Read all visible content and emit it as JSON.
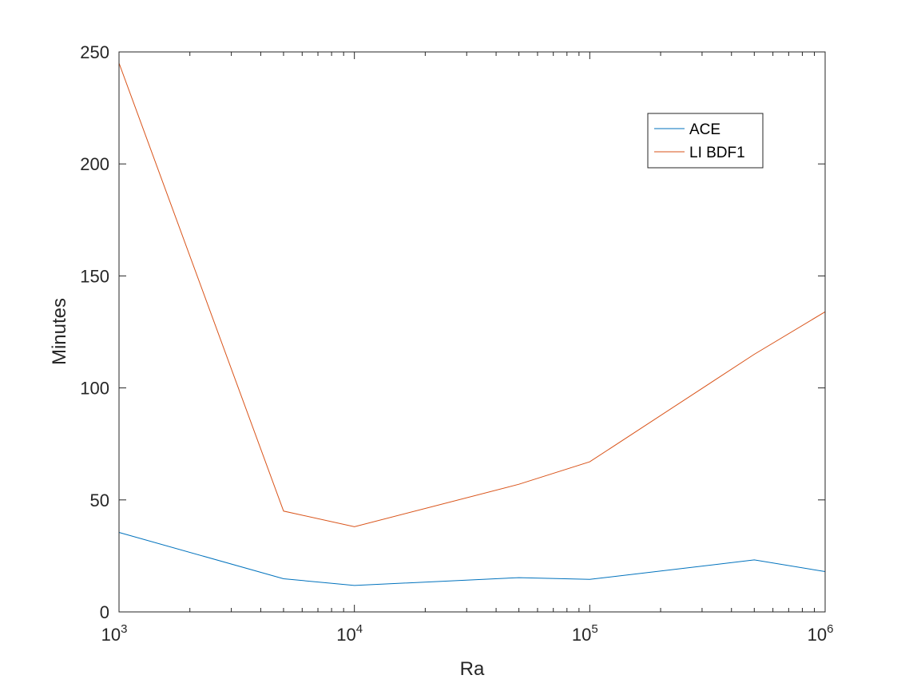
{
  "chart_data": {
    "type": "line",
    "xscale": "log",
    "xlim": [
      1000,
      1000000
    ],
    "ylim": [
      0,
      250
    ],
    "xlabel": "Ra",
    "ylabel": "Minutes",
    "x_ticks": [
      {
        "base": "10",
        "exp": "3",
        "value": 1000
      },
      {
        "base": "10",
        "exp": "4",
        "value": 10000
      },
      {
        "base": "10",
        "exp": "5",
        "value": 100000
      },
      {
        "base": "10",
        "exp": "6",
        "value": 1000000
      }
    ],
    "y_ticks": [
      {
        "label": "0",
        "value": 0
      },
      {
        "label": "50",
        "value": 50
      },
      {
        "label": "100",
        "value": 100
      },
      {
        "label": "150",
        "value": 150
      },
      {
        "label": "200",
        "value": 200
      },
      {
        "label": "250",
        "value": 250
      }
    ],
    "legend_position": "top-right",
    "grid": false,
    "series": [
      {
        "name": "ACE",
        "color": "#0072BD",
        "x": [
          1000,
          5000,
          10000,
          50000,
          100000,
          500000,
          1000000
        ],
        "y": [
          35.5,
          14.8,
          11.8,
          15.3,
          14.5,
          23.2,
          18.0
        ]
      },
      {
        "name": "LI BDF1",
        "color": "#D95319",
        "x": [
          1000,
          5000,
          10000,
          50000,
          100000,
          500000,
          1000000
        ],
        "y": [
          245.0,
          45.0,
          38.0,
          57.0,
          67.0,
          115.0,
          134.0
        ]
      }
    ]
  }
}
